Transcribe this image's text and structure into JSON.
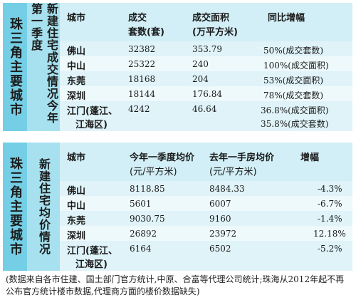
{
  "panel1": {
    "title_main": "珠三角主要城市",
    "title_sub": "新建住宅成交情况今年第一季度",
    "headers": {
      "city": "城市",
      "sets": "成交",
      "sets2": "套数(套)",
      "area": "成交面积",
      "area2": "(万平方米)",
      "yoy": "同比增幅"
    },
    "rows": [
      {
        "city": "佛山",
        "sets": "32382",
        "area": "353.79",
        "yoy": "50%(成交套数)"
      },
      {
        "city": "中山",
        "sets": "25322",
        "area": "240",
        "yoy": "100%(成交面积)"
      },
      {
        "city": "东莞",
        "sets": "18168",
        "area": "204",
        "yoy": "53%(成交面积)"
      },
      {
        "city": "深圳",
        "sets": "18144",
        "area": "176.84",
        "yoy": "78%(成交套数)"
      },
      {
        "city": "江门(蓬江、",
        "city2": "江海区)",
        "sets": "4242",
        "area": "46.64",
        "yoy": "36.8%(成交面积)",
        "yoy2": "35.8%(成交套数)"
      }
    ]
  },
  "panel2": {
    "title_main": "珠三角主要城市",
    "title_sub": "新建住宅均价情况",
    "headers": {
      "city": "城市",
      "this_year": "今年一季度均价",
      "this_year_unit": "(元/平方米)",
      "last_year": "去年一手房均价",
      "last_year_unit": "(元/平方米)",
      "change": "增幅"
    },
    "rows": [
      {
        "city": "佛山",
        "this_year": "8118.85",
        "last_year": "8484.33",
        "change": "-4.3%"
      },
      {
        "city": "中山",
        "this_year": "5601",
        "last_year": "6007",
        "change": "-6.7%"
      },
      {
        "city": "东莞",
        "this_year": "9030.75",
        "last_year": "9160",
        "change": "-1.4%"
      },
      {
        "city": "深圳",
        "this_year": "26892",
        "last_year": "23972",
        "change": "12.18%"
      },
      {
        "city": "江门(蓬江、",
        "city2": "江海区)",
        "this_year": "6164",
        "last_year": "6502",
        "change": "-5.2%"
      }
    ]
  },
  "footnote": "(数据来自各市住建、国土部门官方统计,中原、合富等代理公司统计;珠海从2012年起不再公布官方统计楼市数据,代理商方面的楼价数据缺失)"
}
